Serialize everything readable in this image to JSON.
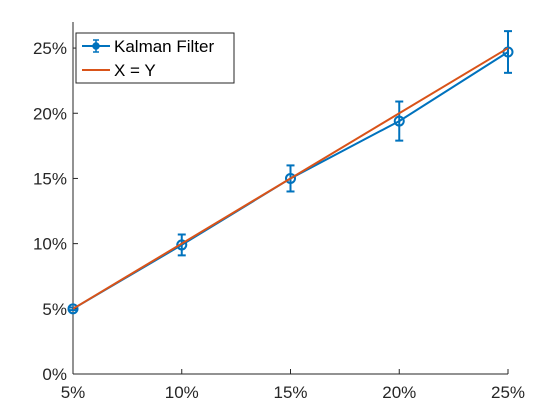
{
  "chart_data": {
    "type": "line",
    "title": "",
    "xlabel": "",
    "ylabel": "",
    "xlim": [
      0.05,
      0.25
    ],
    "ylim": [
      0,
      0.27
    ],
    "x_ticks": [
      0.05,
      0.1,
      0.15,
      0.2,
      0.25
    ],
    "x_tick_labels": [
      "5%",
      "10%",
      "15%",
      "20%",
      "25%"
    ],
    "y_ticks": [
      0,
      0.05,
      0.1,
      0.15,
      0.2,
      0.25
    ],
    "y_tick_labels": [
      "0%",
      "5%",
      "10%",
      "15%",
      "20%",
      "25%"
    ],
    "grid": false,
    "legend_position": "top-left",
    "series": [
      {
        "name": "Kalman Filter",
        "color": "#0072BD",
        "marker": "circle",
        "x": [
          0.05,
          0.1,
          0.15,
          0.2,
          0.25
        ],
        "y": [
          0.05,
          0.099,
          0.15,
          0.194,
          0.247
        ],
        "err_low": [
          0.001,
          0.008,
          0.01,
          0.015,
          0.016
        ],
        "err_high": [
          0.001,
          0.008,
          0.01,
          0.015,
          0.016
        ]
      },
      {
        "name": "X = Y",
        "color": "#D95319",
        "marker": "none",
        "x": [
          0.05,
          0.25
        ],
        "y": [
          0.05,
          0.25
        ]
      }
    ]
  }
}
